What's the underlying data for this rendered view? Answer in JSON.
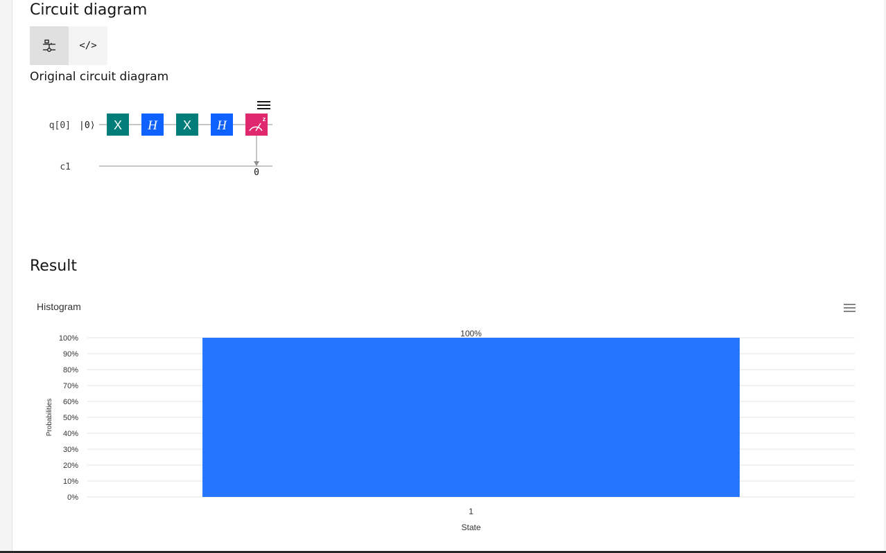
{
  "circuit_section": {
    "title": "Circuit diagram",
    "toggle": [
      {
        "icon": "circuit-composer-icon",
        "active": true
      },
      {
        "icon": "code-icon",
        "label": "</>",
        "active": false
      }
    ],
    "subtitle": "Original circuit diagram",
    "qubit_label": "q[0]",
    "ket_label": "|0⟩",
    "classical_label": "c1",
    "classical_bit_index": "0",
    "gates": [
      {
        "label": "X",
        "color": "#007d79"
      },
      {
        "label": "H",
        "color": "#0f62fe"
      },
      {
        "label": "X",
        "color": "#007d79"
      },
      {
        "label": "H",
        "color": "#0f62fe"
      }
    ],
    "measure": {
      "color": "#e0286e",
      "basis": "z"
    }
  },
  "result_section": {
    "title": "Result"
  },
  "chart_data": {
    "type": "bar",
    "title": "Histogram",
    "categories": [
      "1"
    ],
    "values": [
      100
    ],
    "data_labels": [
      "100%"
    ],
    "xlabel": "State",
    "ylabel": "Probabilities",
    "ylim": [
      0,
      100
    ],
    "yticks": [
      "0%",
      "10%",
      "20%",
      "30%",
      "40%",
      "50%",
      "60%",
      "70%",
      "80%",
      "90%",
      "100%"
    ],
    "grid": true,
    "bar_color": "#2675ff"
  }
}
